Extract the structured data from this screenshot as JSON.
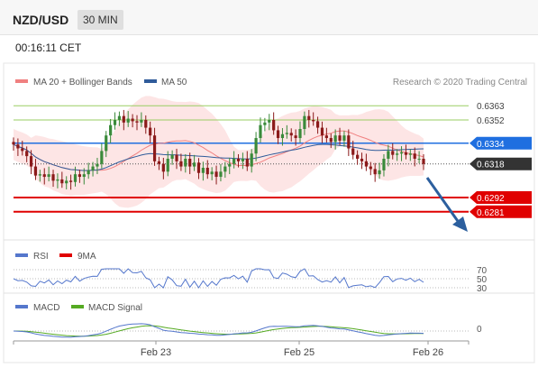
{
  "header": {
    "symbol": "NZD/USD",
    "timeframe": "30 MIN"
  },
  "timestamp": "00:16:11 CET",
  "legend": {
    "ma20": "MA 20 + Bollinger Bands",
    "ma50": "MA 50",
    "credit": "Research © 2020 Trading Central",
    "rsi": "RSI",
    "rsi_ma": "9MA",
    "macd": "MACD",
    "macd_signal": "MACD Signal"
  },
  "colors": {
    "ma20": "#f08080",
    "ma50": "#2f5b9a",
    "band_fill": "#fddede",
    "green_level": "#9acd63",
    "pivot": "#1f6fe0",
    "support": "#e00000",
    "last": "#333333",
    "candle_up": "#3a8a3a",
    "candle_down": "#8b1a1a",
    "arrow": "#2c5f9e",
    "rsi": "#5577cc",
    "macd": "#5577cc",
    "macd_signal": "#55aa22"
  },
  "chart_data": {
    "type": "candlestick",
    "ylim": [
      0.6262,
      0.6375
    ],
    "levels": [
      {
        "label": "0.6363",
        "value": 0.6363,
        "kind": "resistance"
      },
      {
        "label": "0.6352",
        "value": 0.6352,
        "kind": "resistance"
      },
      {
        "label": "0.6334",
        "value": 0.6334,
        "kind": "pivot"
      },
      {
        "label": "0.6318",
        "value": 0.6318,
        "kind": "last"
      },
      {
        "label": "0.6292",
        "value": 0.6292,
        "kind": "support"
      },
      {
        "label": "0.6281",
        "value": 0.6281,
        "kind": "support"
      }
    ],
    "x_ticks": [
      "Feb 23",
      "Feb 25",
      "Feb 26"
    ],
    "closes": [
      0.6333,
      0.633,
      0.6328,
      0.6324,
      0.6316,
      0.6309,
      0.631,
      0.6308,
      0.631,
      0.6305,
      0.6306,
      0.6303,
      0.6305,
      0.6304,
      0.631,
      0.6308,
      0.631,
      0.6313,
      0.6316,
      0.6318,
      0.6328,
      0.634,
      0.6348,
      0.6352,
      0.6355,
      0.635,
      0.6353,
      0.6351,
      0.635,
      0.6352,
      0.6346,
      0.634,
      0.632,
      0.6318,
      0.6312,
      0.6322,
      0.6325,
      0.632,
      0.6316,
      0.6322,
      0.6316,
      0.6319,
      0.6311,
      0.6315,
      0.631,
      0.6312,
      0.6308,
      0.6312,
      0.6316,
      0.6318,
      0.6322,
      0.632,
      0.6322,
      0.6316,
      0.6326,
      0.6338,
      0.6348,
      0.635,
      0.6352,
      0.6344,
      0.6338,
      0.6341,
      0.6342,
      0.634,
      0.6338,
      0.6345,
      0.6355,
      0.6352,
      0.6351,
      0.6346,
      0.634,
      0.6338,
      0.6335,
      0.634,
      0.6336,
      0.634,
      0.633,
      0.6325,
      0.6322,
      0.632,
      0.6316,
      0.6314,
      0.631,
      0.6313,
      0.6322,
      0.6328,
      0.6325,
      0.6326,
      0.6327,
      0.6325,
      0.6326,
      0.6322,
      0.6322,
      0.6318
    ],
    "rsi_ticks": [
      "70",
      "50",
      "30"
    ],
    "macd_ticks": [
      "0"
    ]
  }
}
